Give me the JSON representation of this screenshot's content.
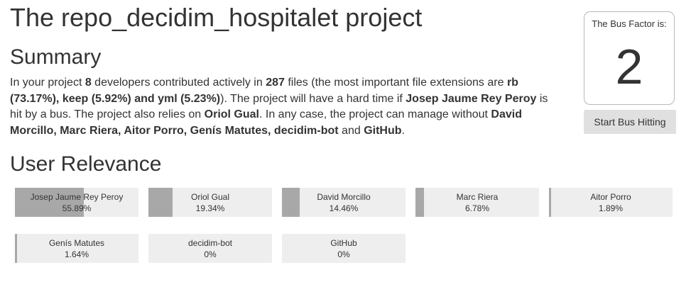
{
  "page": {
    "title": "The repo_decidim_hospitalet project",
    "summary_heading": "Summary",
    "relevance_heading": "User Relevance"
  },
  "summary": {
    "p1": "In your project ",
    "developers": "8",
    "p2": " developers contributed actively in ",
    "files": "287",
    "p3": " files (the most important file extensions are ",
    "extensions": "rb (73.17%), keep (5.92%) and yml (5.23%)",
    "p4": "). The project will have a hard time if ",
    "critical": "Josep Jaume Rey Peroy",
    "p5": " is hit by a bus. The project also relies on ",
    "relies": "Oriol Gual",
    "p6": ". In any case, the project can manage without ",
    "without": "David Morcillo, Marc Riera, Aitor Porro, Genís Matutes, decidim-bot",
    "p7": " and ",
    "last": "GitHub",
    "p8": "."
  },
  "bus_factor": {
    "label": "The Bus Factor is:",
    "value": "2",
    "button": "Start Bus Hitting"
  },
  "users": [
    {
      "name": "Josep Jaume Rey Peroy",
      "percent": "55.89%",
      "fraction": 0.5589
    },
    {
      "name": "Oriol Gual",
      "percent": "19.34%",
      "fraction": 0.1934
    },
    {
      "name": "David Morcillo",
      "percent": "14.46%",
      "fraction": 0.1446
    },
    {
      "name": "Marc Riera",
      "percent": "6.78%",
      "fraction": 0.0678
    },
    {
      "name": "Aitor Porro",
      "percent": "1.89%",
      "fraction": 0.0189
    },
    {
      "name": "Genís Matutes",
      "percent": "1.64%",
      "fraction": 0.0164
    },
    {
      "name": "decidim-bot",
      "percent": "0%",
      "fraction": 0
    },
    {
      "name": "GitHub",
      "percent": "0%",
      "fraction": 0
    }
  ],
  "colors": {
    "bar_fill": "#a8a8a8",
    "card_background": "#eeeeee",
    "button_background": "#e0e0e0"
  }
}
